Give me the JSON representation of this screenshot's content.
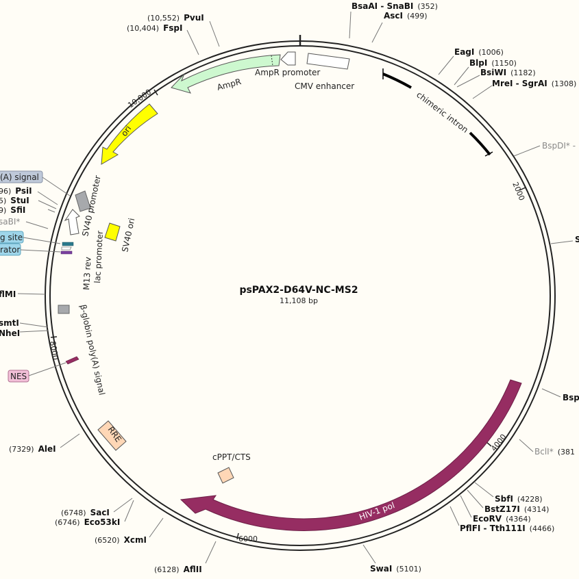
{
  "plasmid": {
    "name": "psPAX2-D64V-NC-MS2",
    "length": "11,108 bp"
  },
  "ticks": [
    {
      "label": "2000"
    },
    {
      "label": "4000"
    },
    {
      "label": "6000"
    },
    {
      "label": "8000"
    },
    {
      "label": "10,000"
    }
  ],
  "sites": [
    {
      "name": "BsaAI - SnaBI",
      "pos": "(352)"
    },
    {
      "name": "AscI",
      "pos": "(499)"
    },
    {
      "name": "EagI",
      "pos": "(1006)"
    },
    {
      "name": "BlpI",
      "pos": "(1150)"
    },
    {
      "name": "BsiWI",
      "pos": "(1182)"
    },
    {
      "name": "MreI - SgrAI",
      "pos": "(1308)"
    },
    {
      "name": "BspDI* -",
      "pos": ""
    },
    {
      "name": "S",
      "pos": ""
    },
    {
      "name": "Bsp",
      "pos": ""
    },
    {
      "name": "BclI*",
      "pos": "(381"
    },
    {
      "name": "SbfI",
      "pos": "(4228)"
    },
    {
      "name": "BstZ17I",
      "pos": "(4314)"
    },
    {
      "name": "EcoRV",
      "pos": "(4364)"
    },
    {
      "name": "PflFI - Tth111I",
      "pos": "(4466)"
    },
    {
      "name": "SwaI",
      "pos": "(5101)"
    },
    {
      "name": "AflII",
      "pos": "(6128)"
    },
    {
      "name": "XcmI",
      "pos": "(6520)"
    },
    {
      "name": "SacI",
      "pos": "(6748)"
    },
    {
      "name": "Eco53kI",
      "pos": "(6746)"
    },
    {
      "name": "AleI",
      "pos": "(7329)"
    },
    {
      "name": "NheI",
      "pos": ""
    },
    {
      "name": "smtI",
      "pos": ""
    },
    {
      "name": "flMI",
      "pos": ""
    },
    {
      "name": "saBI*",
      "pos": ""
    },
    {
      "name": "SfiI",
      "pos": "9)"
    },
    {
      "name": "StuI",
      "pos": "5)"
    },
    {
      "name": "PsiI",
      "pos": "96)"
    },
    {
      "name": "FspI",
      "pos": "(10,404)"
    },
    {
      "name": "PvuI",
      "pos": "(10,552)"
    }
  ],
  "features": {
    "cmv_enhancer": "CMV enhancer",
    "chimeric_intron": "chimeric intron",
    "hiv1_pol": "HIV-1 pol",
    "cppt_cts": "cPPT/CTS",
    "rre": "RRE",
    "nes": "NES",
    "beta_globin": "β-globin poly(A) signal",
    "m13_rev": "M13 rev",
    "lac_promoter": "lac promoter",
    "sv40_promoter": "SV40 promoter",
    "sv40_ori": "SV40 ori",
    "ori": "ori",
    "ampr": "AmpR",
    "ampr_promoter": "AmpR promoter",
    "polya_signal_tag": "(A) signal",
    "binding_site_tag": "g site",
    "terminator_tag": "rator"
  },
  "colors": {
    "hiv1_pol": "#962d62",
    "ori": "#ffff00",
    "ampr": "#cdf8cf",
    "sv40_promoter": "#ffffff",
    "cppt": "#ffd7b6",
    "rre": "#ffd7b6",
    "nes": "#962d62",
    "grey_feature": "#a7a9ac",
    "polya_tag": "#bfc9d9",
    "binding_tag": "#9fd6ea",
    "nes_tag": "#f2c0d8"
  }
}
